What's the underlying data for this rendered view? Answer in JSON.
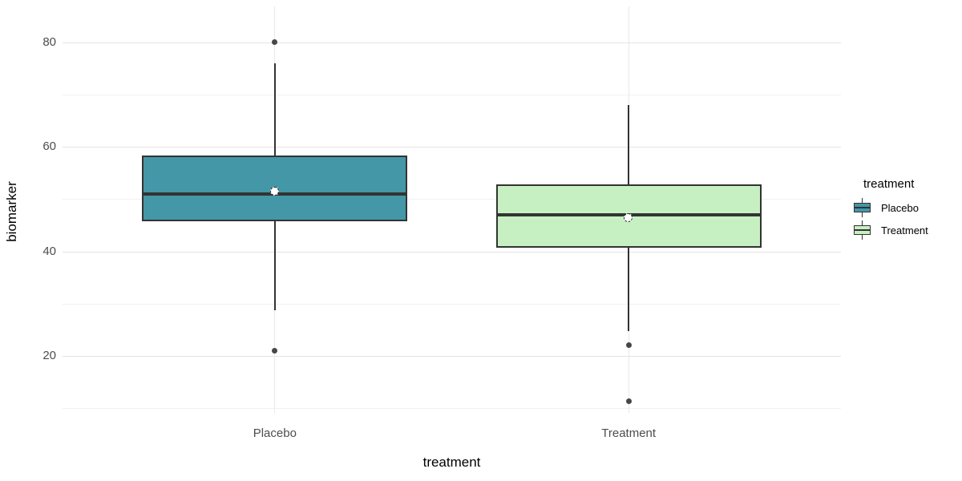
{
  "chart_data": {
    "type": "boxplot",
    "title": "",
    "xlabel": "treatment",
    "ylabel": "biomarker",
    "categories": [
      "Placebo",
      "Treatment"
    ],
    "y_axis": {
      "major_ticks": [
        20,
        40,
        60,
        80
      ],
      "minor_ticks": [
        10,
        30,
        50,
        70
      ],
      "ylim": [
        9.1,
        86.9
      ]
    },
    "grid": true,
    "series": [
      {
        "name": "Placebo",
        "fill": "#4397A7",
        "lower_whisker": 28.7,
        "q1": 45.8,
        "median": 51,
        "mean": 51.5,
        "q3": 58.4,
        "upper_whisker": 76,
        "outliers": [
          80,
          21
        ]
      },
      {
        "name": "Treatment",
        "fill": "#C7F0C2",
        "lower_whisker": 24.8,
        "q1": 40.7,
        "median": 47,
        "mean": 46.4,
        "q3": 52.8,
        "upper_whisker": 68,
        "outliers": [
          22,
          11.4
        ]
      }
    ],
    "legend": {
      "title": "treatment",
      "position": "right",
      "entries": [
        {
          "label": "Placebo",
          "color": "#4397A7"
        },
        {
          "label": "Treatment",
          "color": "#C7F0C2"
        }
      ]
    },
    "style": {
      "box_border_color": "#333333",
      "median_color": "#333333",
      "outlier_color": "#474747",
      "mean_fill": "#FFFFFF",
      "major_grid_color": "#E4E4E4",
      "minor_grid_color": "#F1F1F1",
      "tick_label_color": "#4D4D4D",
      "axis_title_color": "#000000",
      "panel_background": "#FFFFFF"
    }
  }
}
